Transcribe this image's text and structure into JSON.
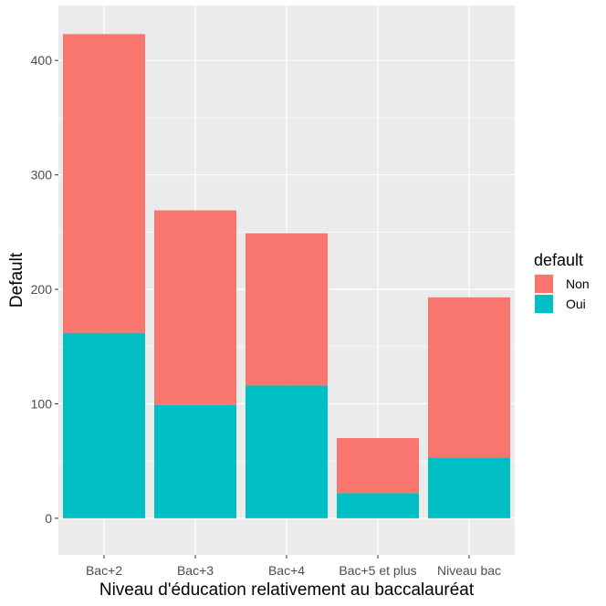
{
  "chart_data": {
    "type": "bar",
    "stacked": true,
    "categories": [
      "Bac+2",
      "Bac+3",
      "Bac+4",
      "Bac+5 et plus",
      "Niveau bac"
    ],
    "series": [
      {
        "name": "Non",
        "values": [
          261,
          170,
          133,
          48,
          140
        ],
        "color": "#F8766D"
      },
      {
        "name": "Oui",
        "values": [
          162,
          99,
          116,
          22,
          53
        ],
        "color": "#00BFC4"
      }
    ],
    "totals": [
      423,
      269,
      249,
      70,
      193
    ],
    "title": "",
    "xlabel": "Niveau d'éducation relativement au baccalauréat",
    "ylabel": "Default",
    "ylim": [
      -32,
      448
    ],
    "yticks": [
      0,
      100,
      200,
      300,
      400
    ],
    "grid": true,
    "legend": {
      "title": "default",
      "placement": "right",
      "entries": [
        "Non",
        "Oui"
      ]
    },
    "panel_background": "#EBEBEB",
    "gridline_color": "#FFFFFF"
  }
}
